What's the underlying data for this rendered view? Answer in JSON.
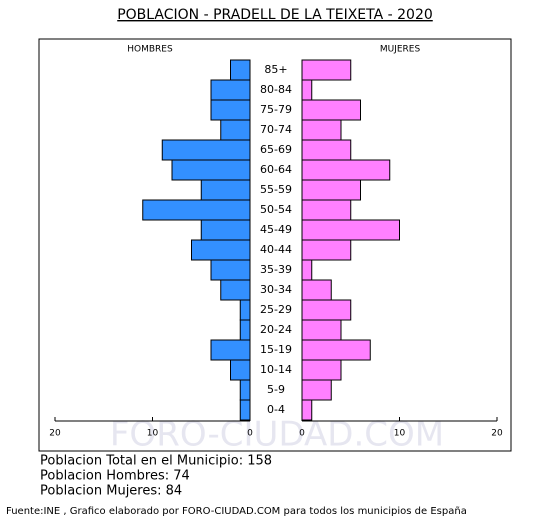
{
  "chart_data": {
    "type": "pyramid",
    "title": "POBLACION - PRADELL DE LA TEIXETA - 2020",
    "categories": [
      "85+",
      "80-84",
      "75-79",
      "70-74",
      "65-69",
      "60-64",
      "55-59",
      "50-54",
      "45-49",
      "40-44",
      "35-39",
      "30-34",
      "25-29",
      "20-24",
      "15-19",
      "10-14",
      "5-9",
      "0-4"
    ],
    "series": [
      {
        "name": "HOMBRES",
        "color": "#3390ff",
        "values": [
          2,
          4,
          4,
          3,
          9,
          8,
          5,
          11,
          5,
          6,
          4,
          3,
          1,
          1,
          4,
          2,
          1,
          1
        ]
      },
      {
        "name": "MUJERES",
        "color": "#ff80ff",
        "values": [
          5,
          1,
          6,
          4,
          5,
          9,
          6,
          5,
          10,
          5,
          1,
          3,
          5,
          4,
          7,
          4,
          3,
          1
        ]
      }
    ],
    "xlim": [
      0,
      20
    ],
    "xticks": [
      0,
      10,
      20
    ],
    "watermark": "FORO-CIUDAD.COM",
    "notes": [
      "Poblacion Total en el Municipio: 158",
      "Poblacion Hombres: 74",
      "Poblacion Mujeres: 84"
    ],
    "source": "Fuente:INE , Grafico elaborado por FORO-CIUDAD.COM para todos los municipios de España"
  }
}
